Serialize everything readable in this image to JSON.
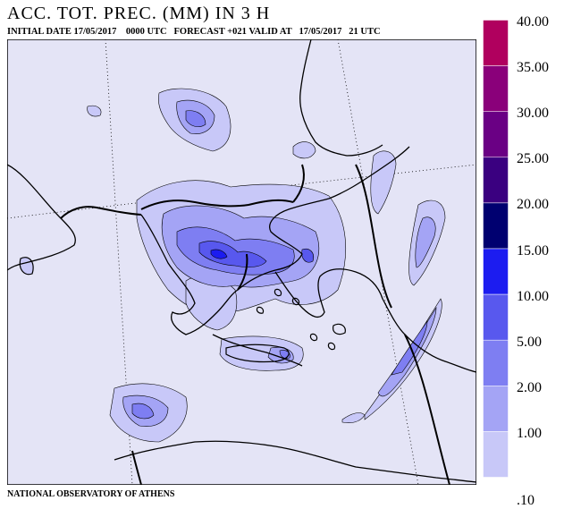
{
  "title": "ACC. TOT. PREC. (MM) IN 3 H",
  "subtitle": {
    "initial_label": "INITIAL DATE",
    "initial_date": "17/05/2017",
    "utc_time": "0000 UTC",
    "forecast": "FORECAST +021",
    "valid_label": "VALID AT",
    "valid_date": "17/05/2017",
    "valid_hour": "21 UTC"
  },
  "footer": "NATIONAL OBSERVATORY OF ATHENS",
  "colors": {
    "background": "#e4e4f6",
    "coast": "#000000",
    "border": "#000000"
  },
  "legend": [
    {
      "label": "40.00",
      "color": "#b0005e"
    },
    {
      "label": "35.00",
      "color": "#8a007a"
    },
    {
      "label": "30.00",
      "color": "#6a0084"
    },
    {
      "label": "25.00",
      "color": "#3a0080"
    },
    {
      "label": "20.00",
      "color": "#000070"
    },
    {
      "label": "15.00",
      "color": "#1c1cf0"
    },
    {
      "label": "10.00",
      "color": "#5858ee"
    },
    {
      "label": "5.00",
      "color": "#7e7ef2"
    },
    {
      "label": "2.00",
      "color": "#a4a4f5"
    },
    {
      "label": "1.00",
      "color": "#c8c8f8"
    },
    {
      "label": ".10",
      "color": "#e4e4f6"
    }
  ]
}
